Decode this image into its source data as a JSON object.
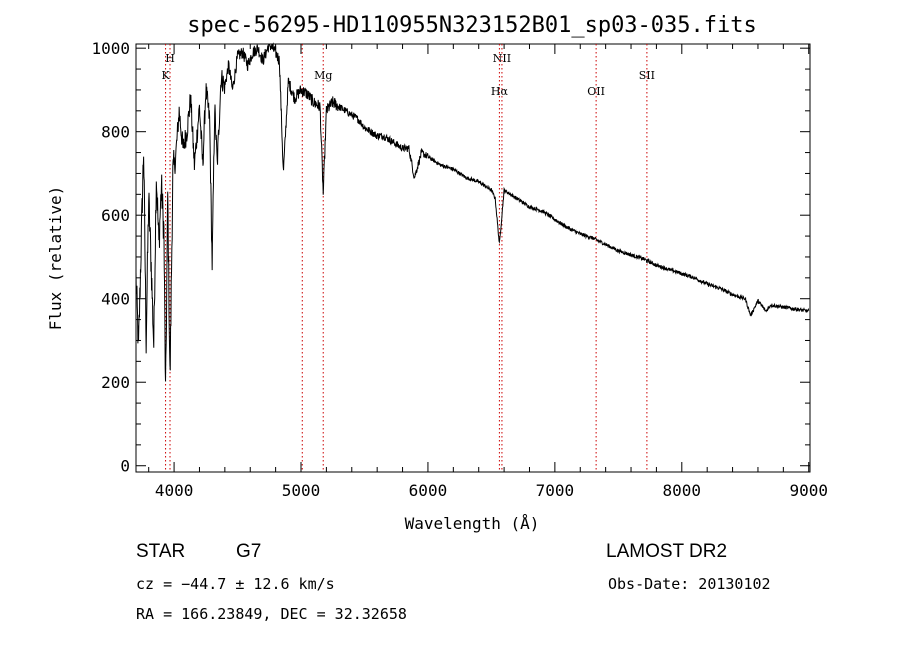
{
  "chart_data": {
    "type": "line",
    "title": "spec-56295-HD110955N323152B01_sp03-035.fits",
    "xlabel": "Wavelength (Å)",
    "ylabel": "Flux (relative)",
    "xlim": [
      3700,
      9010
    ],
    "ylim": [
      -15,
      1010
    ],
    "x_ticks": [
      4000,
      5000,
      6000,
      7000,
      8000,
      9000
    ],
    "y_ticks": [
      0,
      200,
      400,
      600,
      800,
      1000
    ],
    "series": [
      {
        "x": [
          3700,
          3720,
          3740,
          3760,
          3780,
          3800,
          3820,
          3840,
          3860,
          3880,
          3900,
          3920,
          3933,
          3950,
          3968,
          3990,
          4010,
          4040,
          4070,
          4101,
          4130,
          4160,
          4200,
          4226,
          4250,
          4280,
          4300,
          4320,
          4340,
          4370,
          4400,
          4430,
          4460,
          4500,
          4540,
          4580,
          4620,
          4660,
          4700,
          4750,
          4800,
          4830,
          4861,
          4900,
          4950,
          5000,
          5050,
          5100,
          5150,
          5175,
          5200,
          5250,
          5300,
          5350,
          5400,
          5450,
          5500,
          5550,
          5600,
          5650,
          5700,
          5750,
          5800,
          5850,
          5893,
          5950,
          6000,
          6050,
          6100,
          6150,
          6200,
          6250,
          6300,
          6350,
          6400,
          6450,
          6500,
          6530,
          6563,
          6600,
          6650,
          6700,
          6800,
          6900,
          7000,
          7100,
          7200,
          7300,
          7400,
          7500,
          7600,
          7700,
          7800,
          7900,
          8000,
          8100,
          8200,
          8300,
          8400,
          8500,
          8542,
          8600,
          8662,
          8700,
          8800,
          8900,
          9000
        ],
        "y": [
          450,
          280,
          520,
          760,
          300,
          640,
          480,
          290,
          700,
          530,
          670,
          560,
          160,
          650,
          200,
          700,
          730,
          850,
          760,
          800,
          880,
          720,
          860,
          720,
          900,
          830,
          480,
          860,
          720,
          930,
          910,
          960,
          900,
          980,
          990,
          960,
          990,
          1000,
          970,
          1010,
          990,
          970,
          700,
          920,
          880,
          900,
          890,
          870,
          860,
          650,
          850,
          870,
          860,
          850,
          840,
          830,
          810,
          800,
          790,
          790,
          780,
          770,
          760,
          760,
          690,
          750,
          740,
          730,
          720,
          715,
          710,
          700,
          690,
          685,
          680,
          670,
          660,
          640,
          530,
          660,
          650,
          640,
          620,
          610,
          590,
          570,
          555,
          545,
          530,
          515,
          505,
          495,
          480,
          470,
          460,
          450,
          435,
          425,
          410,
          400,
          360,
          395,
          370,
          385,
          380,
          375,
          370
        ]
      }
    ],
    "line_markers": [
      {
        "label": "H",
        "x": 3968
      },
      {
        "label": "K",
        "x": 3933
      },
      {
        "label": "Mg",
        "x": 5175
      },
      {
        "label": "NII",
        "x": 6583
      },
      {
        "label": "Hα",
        "x": 6563
      },
      {
        "label": "OII",
        "x": 7325
      },
      {
        "label": "SII",
        "x": 7725
      }
    ],
    "marker_extra_lines": [
      5010
    ],
    "grid": false,
    "line_color": "#000000",
    "marker_color": "#cc0000"
  },
  "info": {
    "object_type": "STAR",
    "subclass": "G7",
    "survey": "LAMOST DR2",
    "redshift": "cz = −44.7 ± 12.6 km/s",
    "obs_date": "Obs-Date: 20130102",
    "coords": "RA = 166.23849, DEC =  32.32658"
  }
}
